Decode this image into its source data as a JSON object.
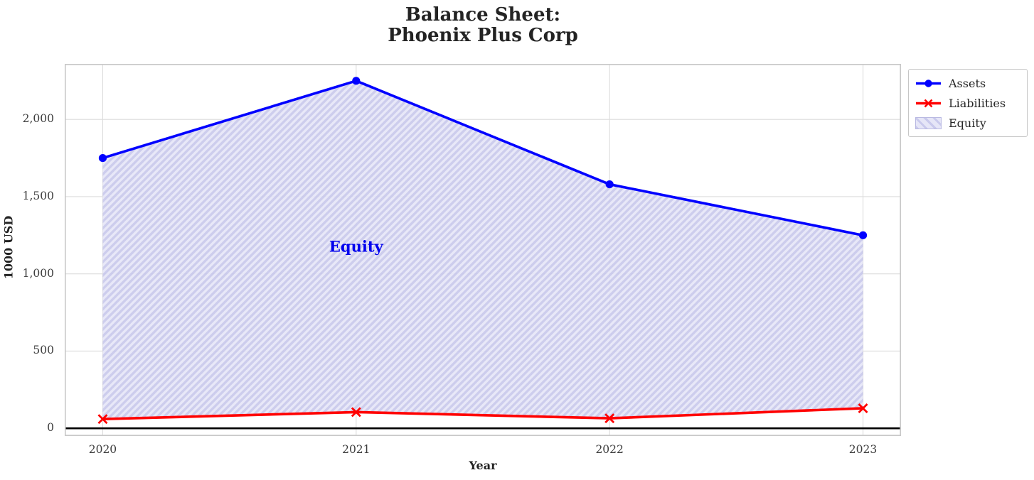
{
  "chart_data": {
    "type": "line",
    "title": "Balance Sheet:\nPhoenix Plus Corp",
    "title_line1": "Balance Sheet:",
    "title_line2": "Phoenix Plus Corp",
    "xlabel": "Year",
    "ylabel": "1000 USD",
    "categories": [
      2020,
      2021,
      2022,
      2023
    ],
    "series": [
      {
        "name": "Assets",
        "values": [
          1750,
          2250,
          1580,
          1250
        ],
        "color": "#0000ff",
        "marker": "circle"
      },
      {
        "name": "Liabilities",
        "values": [
          60,
          105,
          65,
          130
        ],
        "color": "#ff0000",
        "marker": "x"
      }
    ],
    "area": {
      "name": "Equity",
      "between": [
        "Assets",
        "Liabilities"
      ],
      "fill_color": "#e6e6f7",
      "hatch_color": "#c9c9ec",
      "hatch": "//"
    },
    "annotation": {
      "text": "Equity",
      "x": 2021,
      "y": 1178,
      "color": "#0000ee"
    },
    "xlim": [
      2019.85,
      2023.15
    ],
    "ylim": [
      -49.5,
      2359.5
    ],
    "yticks": [
      0,
      500,
      1000,
      1500,
      2000
    ],
    "ytick_labels": [
      "0",
      "500",
      "1,000",
      "1,500",
      "2,000"
    ],
    "xtick_labels": [
      "2020",
      "2021",
      "2022",
      "2023"
    ],
    "grid": true,
    "grid_color": "#dcdcdc",
    "spine_color": "#c8c8c8",
    "zero_line": {
      "y": 0,
      "color": "#000000"
    },
    "legend": {
      "position": "outside-top-right",
      "entries": [
        "Assets",
        "Liabilities",
        "Equity"
      ]
    }
  }
}
